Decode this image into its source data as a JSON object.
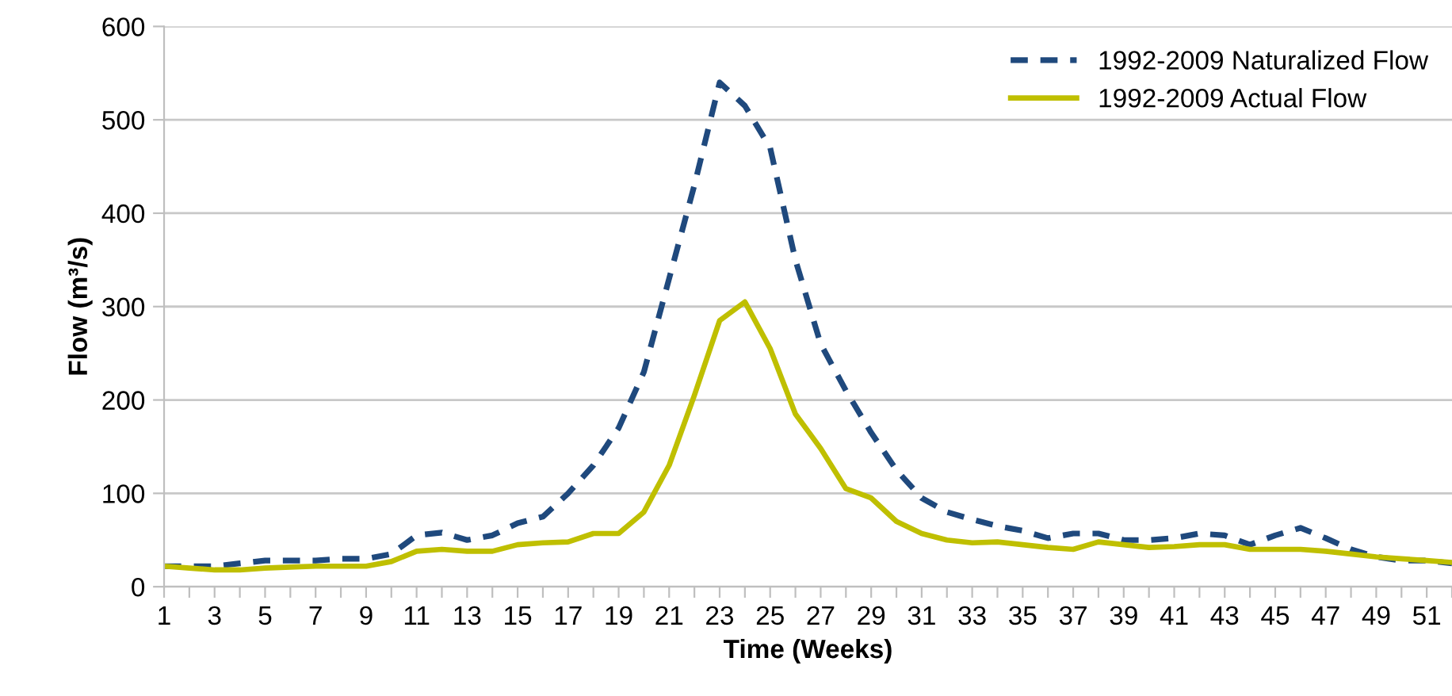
{
  "chart_data": {
    "type": "line",
    "xlabel": "Time (Weeks)",
    "ylabel": "Flow (m³/s)",
    "categories": [
      "1",
      null,
      "3",
      null,
      "5",
      null,
      "7",
      null,
      "9",
      null,
      "11",
      null,
      "13",
      null,
      "15",
      null,
      "17",
      null,
      "19",
      null,
      "21",
      null,
      "23",
      null,
      "25",
      null,
      "27",
      null,
      "29",
      null,
      "31",
      null,
      "33",
      null,
      "35",
      null,
      "37",
      null,
      "39",
      null,
      "41",
      null,
      "43",
      null,
      "45",
      null,
      "47",
      null,
      "49",
      null,
      "51",
      null
    ],
    "series": [
      {
        "name": "1992-2009 Naturalized Flow",
        "color": "#1f497d",
        "line_style": "dashed",
        "values": [
          22,
          22,
          22,
          25,
          28,
          28,
          28,
          30,
          30,
          35,
          55,
          58,
          50,
          55,
          68,
          75,
          100,
          130,
          170,
          230,
          330,
          430,
          540,
          515,
          470,
          350,
          260,
          210,
          165,
          125,
          95,
          80,
          72,
          65,
          60,
          52,
          57,
          57,
          50,
          50,
          52,
          57,
          55,
          45,
          55,
          63,
          52,
          40,
          32,
          28,
          28,
          25
        ]
      },
      {
        "name": "1992-2009 Actual Flow",
        "color": "#bfbf00",
        "line_style": "solid",
        "values": [
          22,
          20,
          18,
          18,
          20,
          21,
          22,
          22,
          22,
          27,
          38,
          40,
          38,
          38,
          45,
          47,
          48,
          57,
          57,
          80,
          130,
          205,
          285,
          305,
          255,
          185,
          148,
          105,
          95,
          70,
          57,
          50,
          47,
          48,
          45,
          42,
          40,
          48,
          45,
          42,
          43,
          45,
          45,
          40,
          40,
          40,
          38,
          35,
          32,
          30,
          28,
          26
        ]
      }
    ],
    "ylim": [
      0,
      600
    ],
    "yticks": [
      0,
      100,
      200,
      300,
      400,
      500,
      600
    ],
    "grid": "y",
    "legend": "top right",
    "marker": "none"
  }
}
